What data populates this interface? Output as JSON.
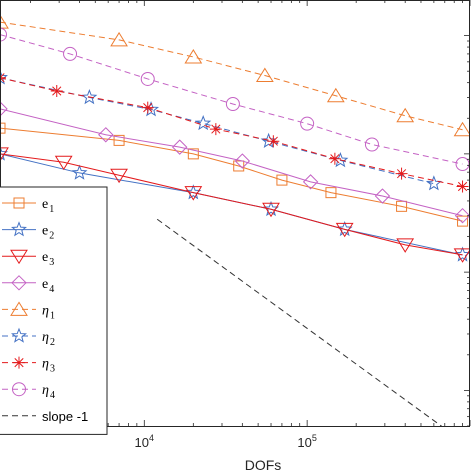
{
  "chart_data": {
    "type": "line",
    "xlabel": "DOFs",
    "x_scale": "log",
    "y_scale": "log",
    "xlim": [
      1300,
      1000000
    ],
    "ylim": [
      0.0005,
      2
    ],
    "x_ticks": [
      {
        "value": 10000,
        "base": "10",
        "exp": "4"
      },
      {
        "value": 100000,
        "base": "10",
        "exp": "5"
      }
    ],
    "grid": false,
    "legend_position": "left",
    "series": [
      {
        "key": "e1",
        "label_base": "e",
        "label_sub": "1",
        "color": "#ED7D31",
        "marker": "square",
        "dash": "solid",
        "x": [
          1300,
          7000,
          20000,
          38000,
          70000,
          140000,
          380000,
          900000
        ],
        "y": [
          0.165,
          0.13,
          0.1,
          0.079,
          0.06,
          0.047,
          0.036,
          0.027
        ]
      },
      {
        "key": "e2",
        "label_base": "e",
        "label_sub": "2",
        "color": "#4472C4",
        "marker": "star",
        "dash": "solid",
        "x": [
          1300,
          4000,
          20000,
          60000,
          170000,
          900000
        ],
        "y": [
          0.1,
          0.069,
          0.047,
          0.034,
          0.023,
          0.014
        ]
      },
      {
        "key": "e3",
        "label_base": "e",
        "label_sub": "3",
        "color": "#E41A1C",
        "marker": "triangle-down",
        "dash": "solid",
        "x": [
          1300,
          3200,
          7000,
          20000,
          60000,
          170000,
          400000,
          900000
        ],
        "y": [
          0.1,
          0.085,
          0.066,
          0.047,
          0.034,
          0.023,
          0.017,
          0.014
        ]
      },
      {
        "key": "e4",
        "label_base": "e",
        "label_sub": "4",
        "color": "#C462C4",
        "marker": "diamond",
        "dash": "solid",
        "x": [
          1300,
          5800,
          16500,
          40000,
          105000,
          290000,
          900000
        ],
        "y": [
          0.24,
          0.145,
          0.114,
          0.087,
          0.058,
          0.044,
          0.03
        ]
      },
      {
        "key": "eta1",
        "label_base": "η",
        "label_sub": "1",
        "color": "#ED7D31",
        "marker": "triangle-up",
        "dash": "dashed",
        "x": [
          1300,
          7000,
          20000,
          55000,
          150000,
          400000,
          900000
        ],
        "y": [
          1.3,
          0.92,
          0.66,
          0.46,
          0.31,
          0.21,
          0.16
        ]
      },
      {
        "key": "eta2",
        "label_base": "η",
        "label_sub": "2",
        "color": "#4472C4",
        "marker": "star",
        "dash": "dashed",
        "x": [
          1300,
          4600,
          11000,
          23000,
          58000,
          160000,
          600000
        ],
        "y": [
          0.44,
          0.3,
          0.237,
          0.181,
          0.128,
          0.088,
          0.056
        ]
      },
      {
        "key": "eta3",
        "label_base": "η",
        "label_sub": "3",
        "color": "#E41A1C",
        "marker": "asterisk",
        "dash": "dashed",
        "x": [
          1300,
          2900,
          10500,
          27500,
          62000,
          148000,
          380000,
          900000
        ],
        "y": [
          0.44,
          0.34,
          0.246,
          0.162,
          0.128,
          0.091,
          0.068,
          0.053
        ]
      },
      {
        "key": "eta4",
        "label_base": "η",
        "label_sub": "4",
        "color": "#C462C4",
        "marker": "circle",
        "dash": "dashed",
        "x": [
          1300,
          3500,
          10500,
          35000,
          100000,
          250000,
          900000
        ],
        "y": [
          1.02,
          0.7,
          0.43,
          0.264,
          0.18,
          0.12,
          0.082
        ]
      },
      {
        "key": "slope",
        "label_base": "slope -1",
        "label_sub": "",
        "color": "#333333",
        "marker": "none",
        "dash": "dashed",
        "x": [
          12000,
          900000
        ],
        "y": [
          0.028,
          0.00037
        ]
      }
    ]
  }
}
